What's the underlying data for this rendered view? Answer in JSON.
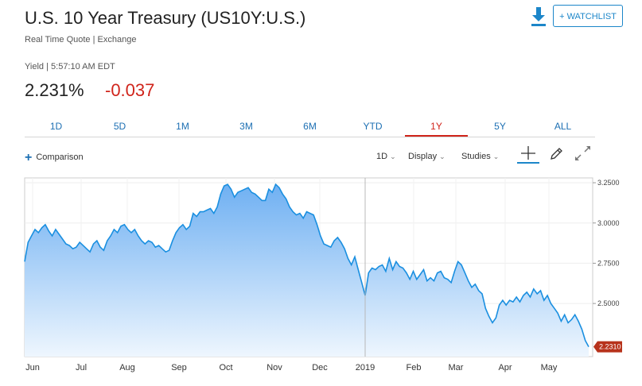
{
  "header": {
    "title": "U.S. 10 Year Treasury (US10Y:U.S.)",
    "subtitle": "Real Time Quote | Exchange",
    "watchlist_label": "+ WATCHLIST"
  },
  "quote": {
    "yield_label": "Yield | 5:57:10 AM EDT",
    "price": "2.231%",
    "change": "-0.037"
  },
  "ranges": [
    {
      "label": "1D",
      "active": false
    },
    {
      "label": "5D",
      "active": false
    },
    {
      "label": "1M",
      "active": false
    },
    {
      "label": "3M",
      "active": false
    },
    {
      "label": "6M",
      "active": false
    },
    {
      "label": "YTD",
      "active": false
    },
    {
      "label": "1Y",
      "active": true
    },
    {
      "label": "5Y",
      "active": false
    },
    {
      "label": "ALL",
      "active": false
    }
  ],
  "toolbar": {
    "comparison_label": "Comparison",
    "interval_label": "1D",
    "display_label": "Display",
    "studies_label": "Studies"
  },
  "icons": {
    "download": "download-icon",
    "crosshair": "crosshair-icon",
    "draw": "pencil-icon",
    "expand": "expand-icon"
  },
  "colors": {
    "accent": "#1c86c9",
    "line": "#1a8fe0",
    "negative": "#d0241b",
    "last_badge": "#b7321b"
  },
  "chart_data": {
    "type": "area",
    "x_ticks": [
      "Jun",
      "Jul",
      "Aug",
      "Sep",
      "Oct",
      "Nov",
      "Dec",
      "2019",
      "Feb",
      "Mar",
      "Apr",
      "May"
    ],
    "y_ticks": [
      "3.2500",
      "3.0000",
      "2.7500",
      "2.5000"
    ],
    "y_tick_values": [
      3.25,
      3.0,
      2.75,
      2.5
    ],
    "ylim": [
      2.17,
      3.28
    ],
    "last_value_label": "2.2310",
    "last_value": 2.231,
    "values": [
      2.76,
      2.88,
      2.92,
      2.96,
      2.94,
      2.97,
      2.99,
      2.95,
      2.92,
      2.96,
      2.93,
      2.9,
      2.87,
      2.86,
      2.84,
      2.85,
      2.88,
      2.86,
      2.84,
      2.82,
      2.87,
      2.89,
      2.85,
      2.83,
      2.89,
      2.92,
      2.96,
      2.94,
      2.98,
      2.99,
      2.96,
      2.94,
      2.96,
      2.92,
      2.89,
      2.87,
      2.89,
      2.88,
      2.85,
      2.86,
      2.84,
      2.82,
      2.83,
      2.89,
      2.94,
      2.97,
      2.99,
      2.96,
      2.98,
      3.06,
      3.04,
      3.07,
      3.07,
      3.08,
      3.09,
      3.06,
      3.1,
      3.18,
      3.23,
      3.24,
      3.21,
      3.16,
      3.19,
      3.2,
      3.21,
      3.22,
      3.19,
      3.18,
      3.16,
      3.14,
      3.14,
      3.21,
      3.19,
      3.24,
      3.22,
      3.18,
      3.15,
      3.1,
      3.07,
      3.05,
      3.06,
      3.03,
      3.07,
      3.06,
      3.05,
      2.99,
      2.92,
      2.87,
      2.86,
      2.85,
      2.89,
      2.91,
      2.88,
      2.84,
      2.78,
      2.74,
      2.79,
      2.71,
      2.63,
      2.55,
      2.69,
      2.72,
      2.71,
      2.73,
      2.74,
      2.7,
      2.78,
      2.71,
      2.76,
      2.73,
      2.72,
      2.69,
      2.65,
      2.7,
      2.65,
      2.68,
      2.71,
      2.64,
      2.66,
      2.64,
      2.69,
      2.7,
      2.66,
      2.65,
      2.63,
      2.7,
      2.76,
      2.74,
      2.69,
      2.64,
      2.6,
      2.62,
      2.58,
      2.56,
      2.47,
      2.42,
      2.38,
      2.41,
      2.49,
      2.52,
      2.49,
      2.52,
      2.51,
      2.54,
      2.51,
      2.55,
      2.57,
      2.54,
      2.59,
      2.56,
      2.58,
      2.52,
      2.55,
      2.5,
      2.47,
      2.44,
      2.39,
      2.43,
      2.38,
      2.4,
      2.43,
      2.39,
      2.34,
      2.27,
      2.231
    ]
  }
}
